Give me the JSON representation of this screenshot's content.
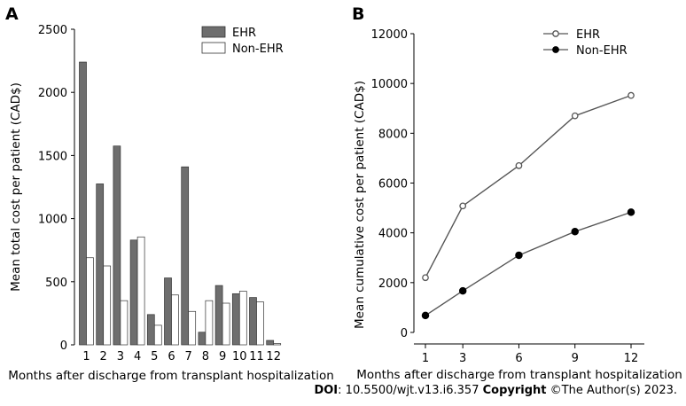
{
  "credit": {
    "doi_label": "DOI",
    "doi_value": ": 10.5500/wjt.v13.i6.357 ",
    "copyright_label": "Copyright",
    "copyright_text": " ©The Author(s) 2023."
  },
  "chart_data": [
    {
      "panel": "A",
      "type": "bar",
      "title": "",
      "xlabel": "Months after discharge from transplant hospitalization",
      "ylabel": "Mean total cost per patient (CAD$)",
      "ylim": [
        0,
        2500
      ],
      "yticks": [
        0,
        500,
        1000,
        1500,
        2000,
        2500
      ],
      "categories": [
        "1",
        "2",
        "3",
        "4",
        "5",
        "6",
        "7",
        "8",
        "9",
        "10",
        "11",
        "12"
      ],
      "legend_position": "top-right",
      "series": [
        {
          "name": "EHR",
          "color": "#6e6e6e",
          "values": [
            2240,
            1275,
            1575,
            830,
            240,
            530,
            1410,
            100,
            470,
            405,
            375,
            35
          ]
        },
        {
          "name": "Non-EHR",
          "color": "#ffffff",
          "values": [
            690,
            625,
            350,
            855,
            155,
            395,
            265,
            350,
            330,
            425,
            340,
            10
          ]
        }
      ]
    },
    {
      "panel": "B",
      "type": "line",
      "title": "",
      "xlabel": "Months after discharge from transplant hospitalization",
      "ylabel": "Mean cumulative cost per patient (CAD$)",
      "ylim": [
        0,
        12000
      ],
      "yticks": [
        0,
        2000,
        4000,
        6000,
        8000,
        10000,
        12000
      ],
      "xticks": [
        1,
        3,
        6,
        9,
        12
      ],
      "x": [
        1,
        3,
        6,
        9,
        12
      ],
      "legend_position": "top-right",
      "series": [
        {
          "name": "EHR",
          "marker": "open-circle",
          "color": "#555555",
          "values": [
            2200,
            5080,
            6700,
            8700,
            9520
          ]
        },
        {
          "name": "Non-EHR",
          "marker": "filled-circle",
          "color": "#555555",
          "values": [
            680,
            1670,
            3100,
            4050,
            4830
          ]
        }
      ]
    }
  ]
}
